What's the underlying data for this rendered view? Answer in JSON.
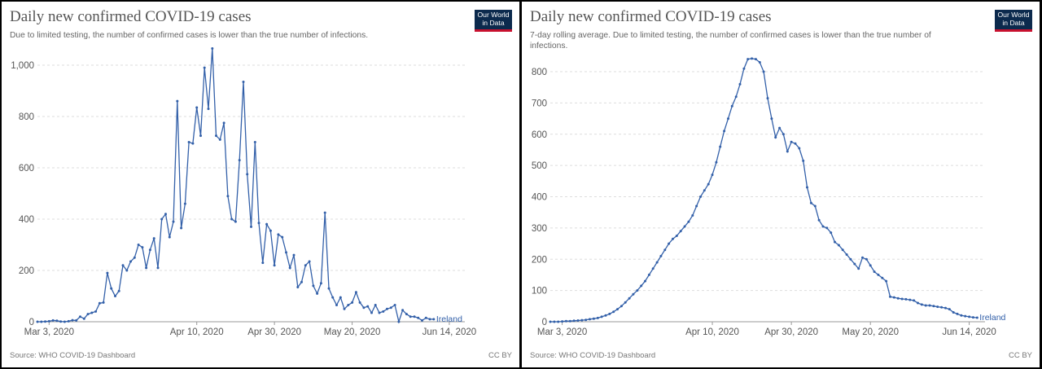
{
  "panels": [
    {
      "title": "Daily new confirmed COVID-19 cases",
      "subtitle": "Due to limited testing, the number of confirmed cases is lower than the true number of infections.",
      "logo": [
        "Our World",
        "in Data"
      ],
      "source": "Source: WHO COVID-19 Dashboard",
      "license": "CC BY"
    },
    {
      "title": "Daily new confirmed COVID-19 cases",
      "subtitle": "7-day rolling average. Due to limited testing, the number of confirmed cases is lower than the true number of infections.",
      "logo": [
        "Our World",
        "in Data"
      ],
      "source": "Source: WHO COVID-19 Dashboard",
      "license": "CC BY"
    }
  ],
  "colors": {
    "series": "#3360a9",
    "grid": "#dddddd"
  },
  "chart_data": [
    {
      "type": "line",
      "title": "Daily new confirmed COVID-19 cases",
      "subtitle": "Due to limited testing, the number of confirmed cases is lower than the true number of infections.",
      "x_start": "2020-02-29",
      "xlim": [
        "2020-02-29",
        "2020-06-18"
      ],
      "ylim": [
        0,
        1000
      ],
      "yticks": [
        0,
        200,
        400,
        600,
        800,
        1000
      ],
      "ytick_labels": [
        "0",
        "200",
        "400",
        "600",
        "800",
        "1,000"
      ],
      "xticks": [
        "2020-03-03",
        "2020-04-10",
        "2020-04-30",
        "2020-05-20",
        "2020-06-14"
      ],
      "xtick_labels": [
        "Mar 3, 2020",
        "Apr 10, 2020",
        "Apr 30, 2020",
        "May 20, 2020",
        "Jun 14, 2020"
      ],
      "grid": true,
      "series": [
        {
          "name": "Ireland",
          "values": [
            0,
            0,
            1,
            2,
            5,
            4,
            1,
            0,
            2,
            6,
            5,
            20,
            12,
            30,
            35,
            40,
            72,
            75,
            190,
            130,
            100,
            120,
            220,
            200,
            235,
            250,
            300,
            290,
            210,
            280,
            325,
            210,
            400,
            420,
            330,
            390,
            860,
            365,
            460,
            700,
            695,
            835,
            725,
            990,
            830,
            1065,
            725,
            710,
            775,
            490,
            400,
            390,
            630,
            935,
            575,
            370,
            700,
            385,
            230,
            380,
            355,
            220,
            340,
            330,
            270,
            210,
            260,
            135,
            155,
            220,
            235,
            140,
            110,
            150,
            425,
            130,
            95,
            65,
            95,
            50,
            65,
            75,
            115,
            75,
            55,
            60,
            35,
            65,
            35,
            40,
            50,
            55,
            65,
            0,
            45,
            30,
            20,
            20,
            15,
            5,
            15,
            10,
            10
          ]
        }
      ]
    },
    {
      "type": "line",
      "title": "Daily new confirmed COVID-19 cases",
      "subtitle": "7-day rolling average. Due to limited testing, the number of confirmed cases is lower than the true number of infections.",
      "x_start": "2020-02-29",
      "xlim": [
        "2020-02-29",
        "2020-06-18"
      ],
      "ylim": [
        0,
        800
      ],
      "yticks": [
        0,
        100,
        200,
        300,
        400,
        500,
        600,
        700,
        800
      ],
      "ytick_labels": [
        "0",
        "100",
        "200",
        "300",
        "400",
        "500",
        "600",
        "700",
        "800"
      ],
      "xticks": [
        "2020-03-03",
        "2020-04-10",
        "2020-04-30",
        "2020-05-20",
        "2020-06-14"
      ],
      "xtick_labels": [
        "Mar 3, 2020",
        "Apr 10, 2020",
        "Apr 30, 2020",
        "May 20, 2020",
        "Jun 14, 2020"
      ],
      "grid": true,
      "series": [
        {
          "name": "Ireland",
          "values": [
            0,
            0,
            0,
            1,
            2,
            2,
            3,
            4,
            5,
            6,
            8,
            10,
            12,
            16,
            20,
            25,
            32,
            40,
            50,
            62,
            75,
            88,
            100,
            115,
            130,
            150,
            170,
            190,
            210,
            230,
            250,
            265,
            275,
            290,
            305,
            320,
            340,
            370,
            400,
            420,
            440,
            470,
            510,
            560,
            610,
            650,
            690,
            720,
            760,
            810,
            840,
            842,
            840,
            830,
            800,
            715,
            650,
            590,
            620,
            600,
            545,
            575,
            570,
            555,
            515,
            430,
            380,
            370,
            325,
            305,
            300,
            285,
            255,
            245,
            230,
            215,
            200,
            185,
            170,
            205,
            200,
            180,
            160,
            150,
            140,
            130,
            80,
            78,
            75,
            73,
            72,
            70,
            68,
            60,
            55,
            52,
            52,
            50,
            48,
            46,
            44,
            40,
            30,
            25,
            20,
            18,
            16,
            14,
            13
          ]
        }
      ]
    }
  ]
}
